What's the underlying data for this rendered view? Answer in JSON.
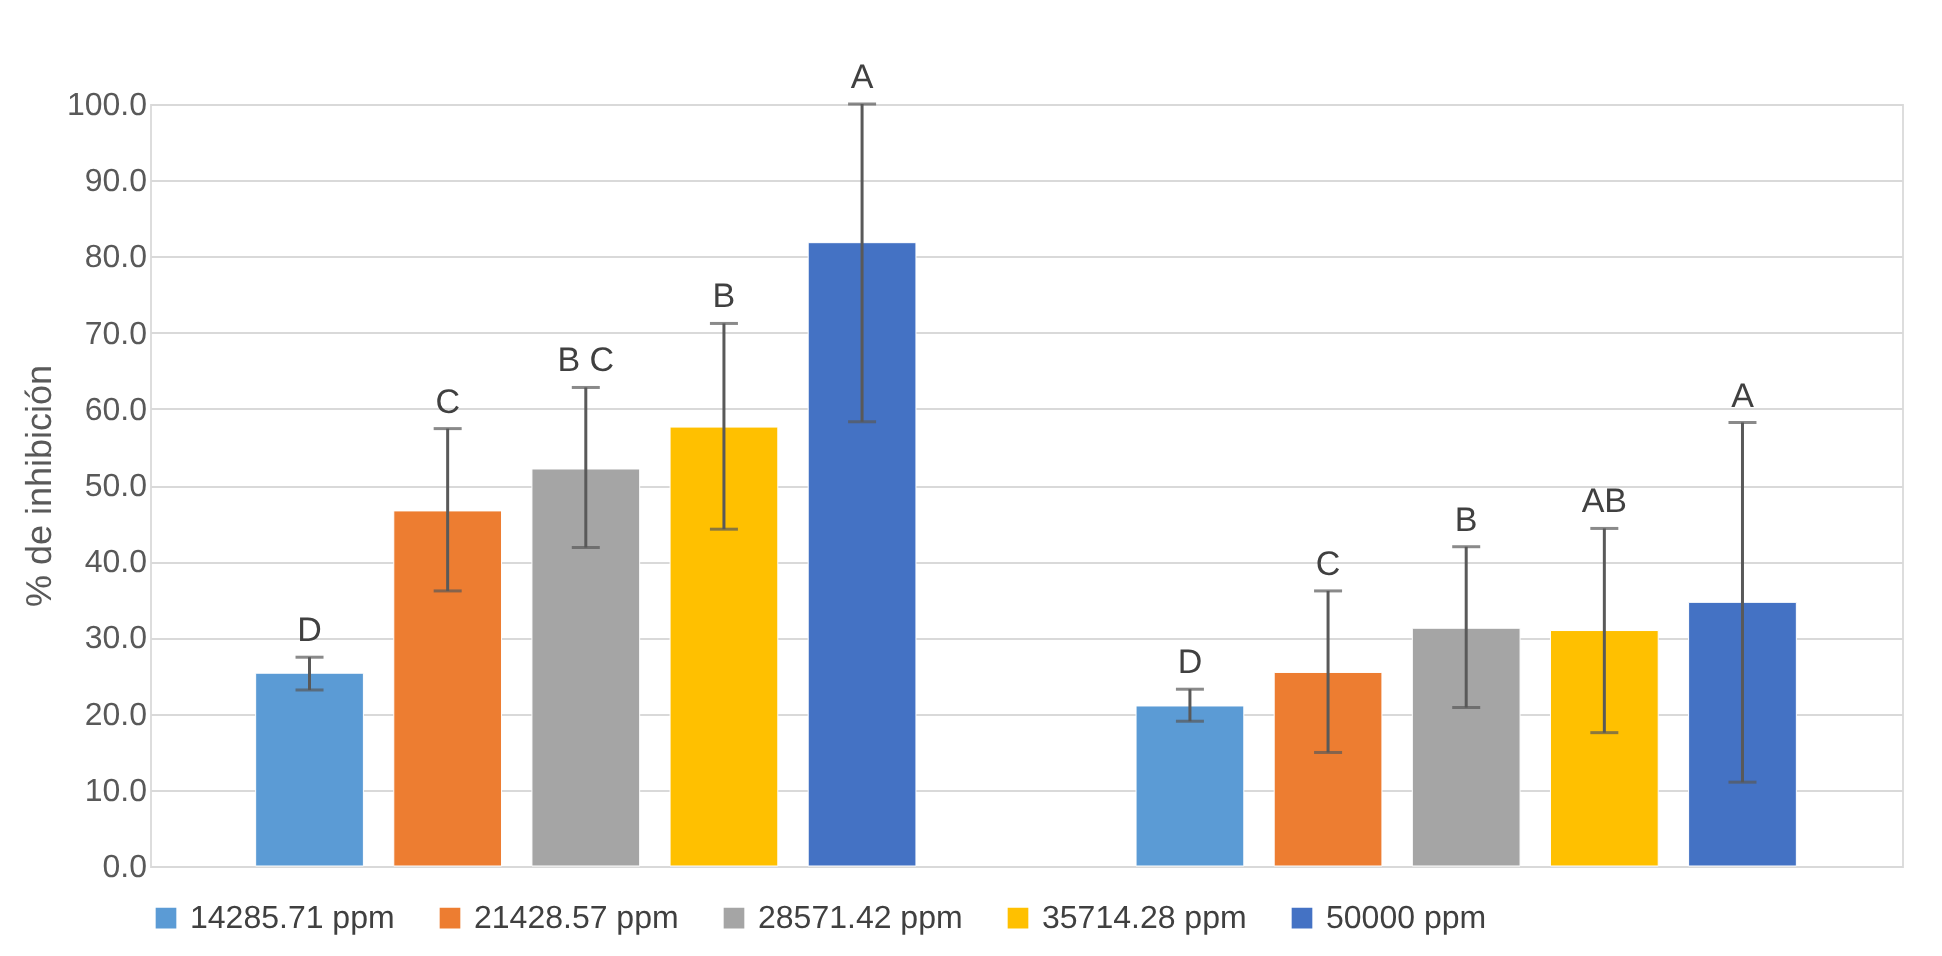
{
  "chart_data": {
    "type": "bar",
    "ylabel": "% de inhibición",
    "categories": [
      null,
      null
    ],
    "series": [
      {
        "name": "14285.71 ppm",
        "color": "#5b9bd5",
        "values": [
          25.3,
          21.0
        ],
        "errors": [
          [
            23.1,
            27.4
          ],
          [
            19.0,
            23.2
          ]
        ]
      },
      {
        "name": "21428.57 ppm",
        "color": "#ed7d31",
        "values": [
          46.6,
          25.4
        ],
        "errors": [
          [
            36.1,
            57.4
          ],
          [
            14.9,
            36.1
          ]
        ]
      },
      {
        "name": "28571.42 ppm",
        "color": "#a5a5a5",
        "values": [
          52.1,
          31.2
        ],
        "errors": [
          [
            41.8,
            62.8
          ],
          [
            20.8,
            41.9
          ]
        ]
      },
      {
        "name": "35714.28 ppm",
        "color": "#ffc000",
        "values": [
          57.6,
          30.9
        ],
        "errors": [
          [
            44.2,
            71.2
          ],
          [
            17.5,
            44.3
          ]
        ]
      },
      {
        "name": "50000 ppm",
        "color": "#4472c4",
        "values": [
          81.8,
          34.6
        ],
        "errors": [
          [
            58.3,
            100
          ],
          [
            11.0,
            58.2
          ]
        ]
      }
    ],
    "annotations": [
      "D",
      "C",
      "B C",
      "B",
      "A",
      "D",
      "C",
      "B",
      "AB",
      "A"
    ],
    "ylim": [
      0,
      100
    ],
    "yticks": [
      {
        "value": 0,
        "label": "0.0"
      },
      {
        "value": 10,
        "label": "10.0"
      },
      {
        "value": 20,
        "label": "20.0"
      },
      {
        "value": 30,
        "label": "30.0"
      },
      {
        "value": 40,
        "label": "40.0"
      },
      {
        "value": 50,
        "label": "50.0"
      },
      {
        "value": 60,
        "label": "60.0"
      },
      {
        "value": 70,
        "label": "70.0"
      },
      {
        "value": 80,
        "label": "80.0"
      },
      {
        "value": 90,
        "label": "90.0"
      },
      {
        "value": 100,
        "label": "100.0"
      }
    ],
    "grid": "y",
    "legend": "bottom",
    "tick_labels": "y"
  }
}
